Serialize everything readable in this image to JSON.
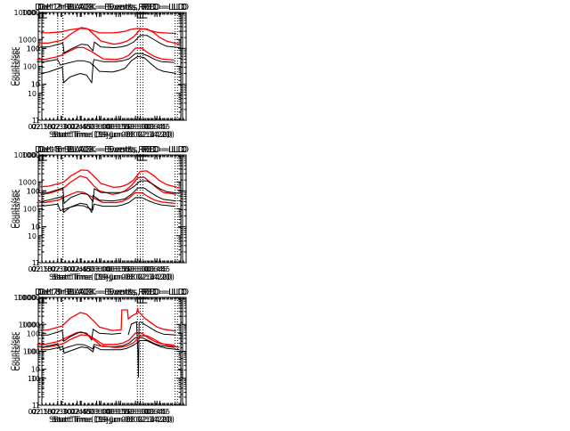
{
  "figure": {
    "background": "#ffffff",
    "colors": {
      "events": "#000000",
      "lld": "#ff0000",
      "axis": "#000000"
    }
  },
  "chart_data": [
    {
      "type": "line",
      "title": "Det 1r BLACK = Events, RED = LLD",
      "xlabel": "Start Time (19-Jun-08 02:14:20)",
      "ylabel": "Counts/sec",
      "yscale": "log",
      "ylim": [
        1,
        10000
      ],
      "yticks": [
        1,
        10,
        100,
        1000,
        10000
      ],
      "ytick_labels": [
        "1",
        "10",
        "100",
        "1000",
        "10000"
      ],
      "xlim_min": [
        135,
        245
      ],
      "xticks_min": [
        135,
        150,
        165,
        180,
        195,
        210,
        225
      ],
      "xtick_labels": [
        "02:15",
        "02:30",
        "02:45",
        "03:00",
        "03:15",
        "03:30",
        "03:45"
      ],
      "vlines_min": [
        150,
        211.5,
        240.5
      ],
      "grid": false,
      "legend": "in title",
      "x_min": [
        134,
        140,
        150,
        152,
        157,
        165,
        170,
        175,
        177,
        178,
        185,
        195,
        200,
        205,
        210,
        215,
        220,
        225,
        230,
        240
      ],
      "series": [
        {
          "name": "LLD",
          "color": "#ff0000",
          "values": [
            180,
            180,
            230,
            250,
            330,
            500,
            500,
            380,
            330,
            310,
            190,
            180,
            200,
            260,
            480,
            470,
            310,
            230,
            190,
            170
          ]
        },
        {
          "name": "Events",
          "color": "#000000",
          "values": [
            150,
            150,
            180,
            110,
            130,
            160,
            160,
            140,
            110,
            180,
            150,
            150,
            160,
            190,
            300,
            300,
            240,
            180,
            150,
            140
          ]
        }
      ]
    },
    {
      "type": "line",
      "title": "Det 2r BLACK = Events, RED = LLD",
      "xlabel": "Start Time (19-Jun-08 02:14:20)",
      "ylabel": "Counts/sec",
      "yscale": "log",
      "ylim": [
        1,
        1000
      ],
      "yticks": [
        1,
        10,
        100,
        1000
      ],
      "ytick_labels": [
        "1",
        "10",
        "100",
        "1000"
      ],
      "xlim_min": [
        135,
        245
      ],
      "xticks_min": [
        135,
        150,
        165,
        180,
        195,
        210,
        225
      ],
      "xtick_labels": [
        "02:15",
        "02:30",
        "02:45",
        "03:00",
        "03:15",
        "03:30",
        "03:45"
      ],
      "vlines_min": [
        151.5,
        212,
        241
      ],
      "grid": false,
      "legend": "in title",
      "x_min": [
        134,
        140,
        151,
        152,
        157,
        165,
        170,
        174,
        175,
        180,
        190,
        195,
        200,
        205,
        210,
        215,
        220,
        225,
        230,
        240
      ],
      "series": [
        {
          "name": "LLD",
          "color": "#ff0000",
          "values": [
            270,
            270,
            290,
            300,
            330,
            360,
            350,
            320,
            310,
            270,
            270,
            280,
            300,
            340,
            360,
            350,
            310,
            280,
            270,
            260
          ]
        },
        {
          "name": "Events",
          "color": "#000000",
          "values": [
            20,
            22,
            30,
            11,
            16,
            20,
            18,
            11,
            35,
            23,
            22,
            24,
            28,
            45,
            60,
            55,
            38,
            27,
            23,
            20
          ]
        }
      ]
    },
    {
      "type": "line",
      "title": "Det 3r BLACK = Events, RED = LLD",
      "xlabel": "Start Time (19-Jun-08 02:14:20)",
      "ylabel": "Counts/sec",
      "yscale": "log",
      "ylim": [
        1,
        1000
      ],
      "yticks": [
        1,
        10,
        100,
        1000
      ],
      "ytick_labels": [
        "1",
        "10",
        "100",
        "1000"
      ],
      "xlim_min": [
        135,
        245
      ],
      "xticks_min": [
        135,
        150,
        165,
        180,
        195,
        210,
        225
      ],
      "xtick_labels": [
        "02:15",
        "02:30",
        "02:45",
        "03:00",
        "03:15",
        "03:30",
        "03:45"
      ],
      "vlines_min": [
        151,
        212,
        241
      ],
      "grid": false,
      "legend": "in title",
      "x_min": [
        134,
        140,
        151,
        152,
        157,
        165,
        170,
        174,
        175,
        180,
        190,
        195,
        200,
        205,
        210,
        215,
        220,
        225,
        230,
        240
      ],
      "series": [
        {
          "name": "LLD",
          "color": "#ff0000",
          "values": [
            140,
            140,
            170,
            180,
            250,
            380,
            350,
            260,
            240,
            160,
            130,
            140,
            160,
            210,
            340,
            350,
            280,
            200,
            160,
            130
          ]
        },
        {
          "name": "Events",
          "color": "#000000",
          "values": [
            110,
            110,
            140,
            75,
            95,
            130,
            125,
            85,
            150,
            110,
            105,
            110,
            120,
            150,
            230,
            230,
            180,
            140,
            115,
            105
          ]
        }
      ]
    },
    {
      "type": "line",
      "title": "Det 4r BLACK = Events, RED = LLD",
      "xlabel": "Start Time (19-Jun-08 02:14:20)",
      "ylabel": "Counts/sec",
      "yscale": "log",
      "ylim": [
        1,
        10000
      ],
      "yticks": [
        1,
        10,
        100,
        1000,
        10000
      ],
      "ytick_labels": [
        "1",
        "10",
        "100",
        "1000",
        "10000"
      ],
      "xlim_min": [
        135,
        245
      ],
      "xticks_min": [
        135,
        150,
        165,
        180,
        195,
        210,
        225
      ],
      "xtick_labels": [
        "02:15",
        "02:30",
        "02:45",
        "03:00",
        "03:15",
        "03:30",
        "03:45"
      ],
      "vlines_min": [
        150,
        211.5,
        240.5
      ],
      "grid": false,
      "legend": "in title",
      "x_min": [
        134,
        140,
        150,
        152,
        157,
        165,
        170,
        175,
        177,
        178,
        185,
        195,
        200,
        205,
        210,
        215,
        220,
        225,
        230,
        240
      ],
      "series": [
        {
          "name": "LLD",
          "color": "#ff0000",
          "values": [
            170,
            170,
            210,
            230,
            300,
            430,
            410,
            300,
            270,
            250,
            170,
            170,
            190,
            250,
            400,
            390,
            280,
            210,
            180,
            160
          ]
        },
        {
          "name": "Events",
          "color": "#000000",
          "values": [
            130,
            130,
            150,
            85,
            105,
            135,
            130,
            100,
            90,
            150,
            125,
            125,
            140,
            170,
            260,
            260,
            200,
            160,
            140,
            125
          ]
        }
      ]
    },
    {
      "type": "line",
      "title": "Det 5r BLACK = Events, RED = LLD",
      "xlabel": "Start Time (19-Jun-08 02:14:20)",
      "ylabel": "Counts/sec",
      "yscale": "log",
      "ylim": [
        1,
        1000
      ],
      "yticks": [
        1,
        10,
        100,
        1000
      ],
      "ytick_labels": [
        "1",
        "10",
        "100",
        "1000"
      ],
      "xlim_min": [
        135,
        245
      ],
      "xticks_min": [
        135,
        150,
        165,
        180,
        195,
        210,
        225
      ],
      "xtick_labels": [
        "02:15",
        "02:30",
        "02:45",
        "03:00",
        "03:15",
        "03:30",
        "03:45"
      ],
      "vlines_min": [
        151.5,
        212,
        241
      ],
      "grid": false,
      "legend": "in title",
      "x_min": [
        134,
        140,
        151,
        152,
        157,
        165,
        170,
        174,
        175,
        180,
        190,
        195,
        200,
        205,
        210,
        215,
        220,
        225,
        230,
        240
      ],
      "series": [
        {
          "name": "LLD",
          "color": "#ff0000",
          "values": [
            80,
            85,
            110,
            120,
            170,
            260,
            230,
            160,
            145,
            100,
            80,
            85,
            100,
            140,
            230,
            240,
            170,
            120,
            90,
            80
          ]
        },
        {
          "name": "Events",
          "color": "#000000",
          "values": [
            50,
            55,
            70,
            25,
            35,
            45,
            42,
            25,
            75,
            55,
            52,
            55,
            60,
            80,
            120,
            120,
            90,
            70,
            58,
            52
          ]
        }
      ]
    },
    {
      "type": "line",
      "title": "Det 6r BLACK = Events, RED = LLD",
      "xlabel": "Start Time (19-Jun-08 02:14:20)",
      "ylabel": "Counts/sec",
      "yscale": "log",
      "ylim": [
        1,
        1000
      ],
      "yticks": [
        1,
        10,
        100,
        1000
      ],
      "ytick_labels": [
        "1",
        "10",
        "100",
        "1000"
      ],
      "xlim_min": [
        135,
        245
      ],
      "xticks_min": [
        135,
        150,
        165,
        180,
        195,
        210,
        225
      ],
      "xtick_labels": [
        "02:15",
        "02:30",
        "02:45",
        "03:00",
        "03:15",
        "03:30",
        "03:45"
      ],
      "vlines_min": [
        151,
        212,
        241
      ],
      "grid": false,
      "legend": "in title",
      "x_min": [
        134,
        140,
        151,
        152,
        157,
        165,
        170,
        174,
        175,
        180,
        190,
        195,
        200,
        205,
        210,
        215,
        220,
        225,
        230,
        240
      ],
      "series": [
        {
          "name": "LLD",
          "color": "#ff0000",
          "values": [
            130,
            135,
            170,
            180,
            260,
            380,
            370,
            270,
            250,
            160,
            125,
            130,
            150,
            200,
            350,
            360,
            270,
            190,
            150,
            120
          ]
        },
        {
          "name": "Events",
          "color": "#000000",
          "values": [
            90,
            90,
            120,
            45,
            65,
            85,
            80,
            50,
            115,
            90,
            90,
            90,
            100,
            130,
            190,
            190,
            150,
            115,
            95,
            85
          ]
        }
      ]
    },
    {
      "type": "line",
      "title": "Det 7r BLACK = Events, RED = LLD",
      "xlabel": "Start Time (19-Jun-08 02:14:20)",
      "ylabel": "Counts/sec",
      "yscale": "log",
      "ylim": [
        1,
        10000
      ],
      "yticks": [
        1,
        10,
        100,
        1000,
        10000
      ],
      "ytick_labels": [
        "1",
        "10",
        "100",
        "1000",
        "10000"
      ],
      "xlim_min": [
        135,
        245
      ],
      "xticks_min": [
        135,
        150,
        165,
        180,
        195,
        210,
        225
      ],
      "xtick_labels": [
        "02:15",
        "02:30",
        "02:45",
        "03:00",
        "03:15",
        "03:30",
        "03:45"
      ],
      "vlines_min": [
        150,
        211.5,
        240.5
      ],
      "grid": false,
      "legend": "in title",
      "x_min": [
        134,
        140,
        150,
        152,
        157,
        165,
        170,
        175,
        177,
        178,
        185,
        195,
        200,
        205,
        210,
        215,
        220,
        225,
        230,
        240
      ],
      "series": [
        {
          "name": "LLD",
          "color": "#ff0000",
          "values": [
            180,
            180,
            230,
            250,
            330,
            500,
            490,
            370,
            320,
            300,
            180,
            180,
            200,
            260,
            480,
            470,
            310,
            230,
            190,
            170
          ]
        },
        {
          "name": "Events",
          "color": "#000000",
          "values": [
            150,
            150,
            190,
            110,
            140,
            180,
            175,
            140,
            120,
            180,
            150,
            150,
            160,
            200,
            320,
            320,
            250,
            190,
            160,
            140
          ]
        }
      ]
    },
    {
      "type": "line",
      "title": "Det 8r BLACK = Events, RED = LLD",
      "xlabel": "Start Time (19-Jun-08 02:14:20)",
      "ylabel": "Counts/sec",
      "yscale": "log",
      "ylim": [
        1,
        1000
      ],
      "yticks": [
        1,
        10,
        100,
        1000
      ],
      "ytick_labels": [
        "1",
        "10",
        "100",
        "1000"
      ],
      "xlim_min": [
        135,
        245
      ],
      "xticks_min": [
        135,
        150,
        165,
        180,
        195,
        210,
        225
      ],
      "xtick_labels": [
        "02:15",
        "02:30",
        "02:45",
        "03:00",
        "03:15",
        "03:30",
        "03:45"
      ],
      "vlines_min": [
        151.5,
        212,
        241
      ],
      "grid": false,
      "legend": "in title",
      "x_min": [
        134,
        140,
        151,
        152,
        157,
        165,
        170,
        174,
        175,
        180,
        190,
        197,
        197.5,
        202,
        202.5,
        205,
        209,
        210,
        210.5,
        211,
        212,
        215,
        220,
        225,
        230,
        240
      ],
      "series": [
        {
          "name": "LLD",
          "color": "#ff0000",
          "values": [
            120,
            125,
            160,
            175,
            260,
            380,
            340,
            250,
            230,
            150,
            120,
            125,
            450,
            450,
            250,
            300,
            360,
            500,
            380,
            380,
            360,
            270,
            200,
            150,
            130,
            115
          ]
        },
        {
          "name": "Events",
          "color": "#000000",
          "values": [
            90,
            90,
            120,
            60,
            80,
            110,
            100,
            65,
            130,
            100,
            95,
            100,
            null,
            null,
            90,
            180,
            210,
            35,
            6,
            200,
            210,
            180,
            140,
            110,
            95,
            90
          ]
        }
      ]
    },
    {
      "type": "line",
      "title": "Det 9r BLACK = Events, RED = LLD",
      "xlabel": "Start Time (19-Jun-08 02:14:20)",
      "ylabel": "Counts/sec",
      "yscale": "log",
      "ylim": [
        1,
        10000
      ],
      "yticks": [
        1,
        10,
        100,
        1000,
        10000
      ],
      "ytick_labels": [
        "1",
        "10",
        "100",
        "1000",
        "10000"
      ],
      "xlim_min": [
        135,
        245
      ],
      "xticks_min": [
        135,
        150,
        165,
        180,
        195,
        210,
        225
      ],
      "xtick_labels": [
        "02:15",
        "02:30",
        "02:45",
        "03:00",
        "03:15",
        "03:30",
        "03:45"
      ],
      "vlines_min": [
        151,
        212,
        241
      ],
      "grid": false,
      "legend": "in title",
      "x_min": [
        134,
        140,
        151,
        152,
        157,
        165,
        170,
        174,
        175,
        180,
        190,
        195,
        200,
        205,
        210,
        215,
        220,
        225,
        230,
        240
      ],
      "series": [
        {
          "name": "LLD",
          "color": "#ff0000",
          "values": [
            140,
            145,
            190,
            200,
            280,
            410,
            390,
            280,
            260,
            160,
            140,
            140,
            160,
            210,
            370,
            380,
            290,
            210,
            170,
            140
          ]
        },
        {
          "name": "Events",
          "color": "#000000",
          "values": [
            115,
            115,
            150,
            85,
            105,
            145,
            135,
            95,
            150,
            115,
            115,
            115,
            130,
            170,
            250,
            250,
            190,
            150,
            130,
            115
          ]
        }
      ]
    }
  ]
}
